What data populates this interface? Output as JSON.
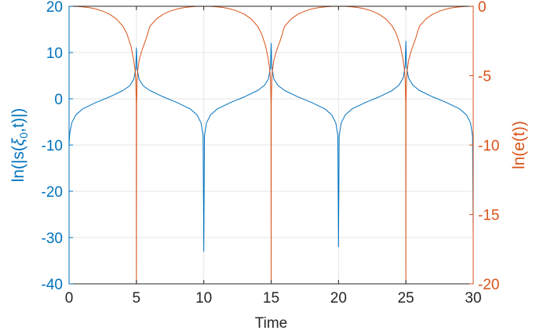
{
  "chart_data": {
    "type": "line",
    "xlabel": "Time",
    "ylabel_left": "ln(|s(ξ0,t)|)",
    "ylabel_left_parts": {
      "main": "ln(|s(",
      "symbol": "ξ",
      "sub": "0",
      "tail": ",t)|)"
    },
    "ylabel_right": "ln(e(t))",
    "xlim": [
      0,
      30
    ],
    "ylim_left": [
      -40,
      20
    ],
    "ylim_right": [
      -20,
      0
    ],
    "x_ticks": [
      "0",
      "5",
      "10",
      "15",
      "20",
      "25",
      "30"
    ],
    "y_left_ticks": [
      "-40",
      "-30",
      "-20",
      "-10",
      "0",
      "10",
      "20"
    ],
    "y_right_ticks": [
      "-20",
      "-15",
      "-10",
      "-5",
      "0"
    ],
    "grid": true,
    "left_axis_color": "#0072BD",
    "right_axis_color": "#D95319",
    "series": [
      {
        "axis": "left",
        "color": "#0072BD",
        "x": [
          0,
          0.05,
          0.2,
          0.5,
          1,
          2,
          3,
          4,
          4.5,
          4.8,
          4.95,
          5,
          5.05,
          5.2,
          5.5,
          6,
          7,
          8,
          9,
          9.5,
          9.8,
          9.95,
          10,
          10.05,
          10.2,
          10.5,
          11,
          12,
          13,
          14,
          14.5,
          14.8,
          14.95,
          15,
          15.05,
          15.2,
          15.5,
          16,
          17,
          18,
          19,
          19.5,
          19.8,
          19.95,
          20,
          20.05,
          20.2,
          20.5,
          21,
          22,
          23,
          24,
          24.5,
          24.8,
          24.95,
          25,
          25.05,
          25.2,
          25.5,
          26,
          27,
          28,
          29,
          29.5,
          29.8,
          29.95,
          30
        ],
        "y": [
          -10,
          -7.5,
          -5.2,
          -3.5,
          -2.2,
          -0.8,
          0.4,
          1.8,
          2.8,
          4.2,
          6.5,
          11,
          6.5,
          4.2,
          2.8,
          1.8,
          0.4,
          -0.8,
          -2.2,
          -3.5,
          -5.2,
          -8,
          -33,
          -8,
          -5.2,
          -3.5,
          -2.2,
          -0.8,
          0.4,
          1.8,
          2.9,
          4.3,
          6.8,
          12,
          6.8,
          4.3,
          2.9,
          1.8,
          0.4,
          -0.8,
          -2.2,
          -3.5,
          -5.2,
          -8,
          -32,
          -8,
          -5.2,
          -3.5,
          -2.2,
          -0.8,
          0.4,
          1.8,
          3,
          4.5,
          7,
          12.5,
          7,
          4.5,
          3,
          1.8,
          0.4,
          -0.8,
          -2.2,
          -3.5,
          -5.2,
          -8,
          -30
        ]
      },
      {
        "axis": "right",
        "color": "#D95319",
        "x": [
          0,
          0.5,
          1,
          1.5,
          2,
          2.5,
          3,
          3.5,
          4,
          4.3,
          4.6,
          4.8,
          4.9,
          4.95,
          4.99,
          5,
          5.01,
          5.05,
          5.1,
          5.2,
          5.4,
          5.7,
          6,
          6.5,
          7,
          7.5,
          8,
          8.5,
          9,
          9.5,
          10,
          10.5,
          11,
          11.5,
          12,
          12.5,
          13,
          13.5,
          14,
          14.3,
          14.6,
          14.8,
          14.9,
          14.95,
          14.99,
          15,
          15.01,
          15.05,
          15.1,
          15.2,
          15.4,
          15.7,
          16,
          16.5,
          17,
          17.5,
          18,
          18.5,
          19,
          19.5,
          20,
          20.5,
          21,
          21.5,
          22,
          22.5,
          23,
          23.5,
          24,
          24.3,
          24.6,
          24.8,
          24.9,
          24.95,
          24.99,
          25,
          25.01,
          25.05,
          25.1,
          25.2,
          25.4,
          25.7,
          26,
          26.5,
          27,
          27.5,
          28,
          28.5,
          29,
          29.5,
          30
        ],
        "y": [
          0,
          -0.01,
          -0.04,
          -0.1,
          -0.2,
          -0.35,
          -0.57,
          -0.9,
          -1.44,
          -2.0,
          -2.9,
          -3.9,
          -4.6,
          -5.3,
          -7,
          -20,
          -7,
          -5.3,
          -4.6,
          -3.9,
          -3.2,
          -2.4,
          -1.44,
          -0.9,
          -0.57,
          -0.35,
          -0.2,
          -0.1,
          -0.04,
          -0.01,
          0,
          -0.01,
          -0.04,
          -0.1,
          -0.2,
          -0.35,
          -0.57,
          -0.9,
          -1.44,
          -2.0,
          -2.9,
          -3.9,
          -4.6,
          -5.3,
          -7,
          -20,
          -7,
          -5.3,
          -4.6,
          -3.9,
          -3.2,
          -2.4,
          -1.44,
          -0.9,
          -0.57,
          -0.35,
          -0.2,
          -0.1,
          -0.04,
          -0.01,
          0,
          -0.01,
          -0.04,
          -0.1,
          -0.2,
          -0.35,
          -0.57,
          -0.9,
          -1.44,
          -2.0,
          -2.9,
          -3.9,
          -4.6,
          -5.3,
          -7,
          -20,
          -7,
          -5.3,
          -4.6,
          -3.9,
          -3.2,
          -2.4,
          -1.44,
          -0.9,
          -0.57,
          -0.35,
          -0.2,
          -0.1,
          -0.04,
          -0.01,
          0
        ]
      }
    ]
  }
}
